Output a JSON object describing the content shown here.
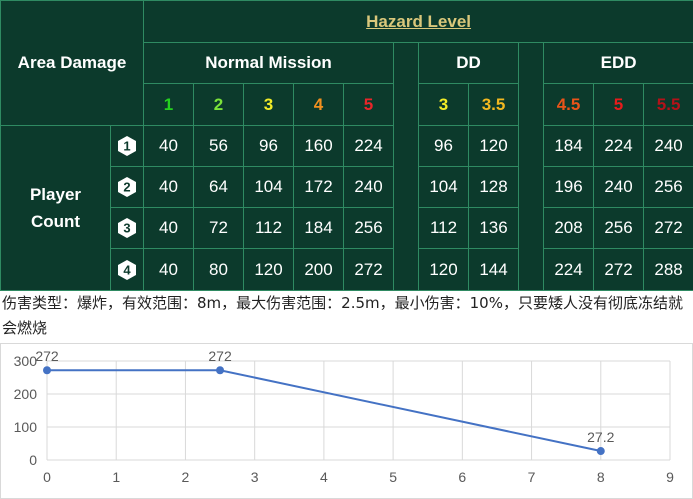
{
  "table": {
    "hazard_title": "Hazard Level",
    "corner_label": "Area Damage",
    "groups": {
      "normal": "Normal Mission",
      "dd": "DD",
      "edd": "EDD"
    },
    "levels": [
      {
        "label": "1",
        "color": "#25d11f"
      },
      {
        "label": "2",
        "color": "#7be33a"
      },
      {
        "label": "3",
        "color": "#f2ec27"
      },
      {
        "label": "4",
        "color": "#f2901f"
      },
      {
        "label": "5",
        "color": "#e8262a"
      },
      {
        "label": "3",
        "color": "#f2ec27"
      },
      {
        "label": "3.5",
        "color": "#f2b820"
      },
      {
        "label": "4.5",
        "color": "#ea5419"
      },
      {
        "label": "5",
        "color": "#e61c1c"
      },
      {
        "label": "5.5",
        "color": "#b31219"
      }
    ],
    "player_count_label_1": "Player",
    "player_count_label_2": "Count",
    "rows": [
      {
        "players": "1",
        "normal": [
          "40",
          "56",
          "96",
          "160",
          "224"
        ],
        "dd": [
          "96",
          "120"
        ],
        "edd": [
          "184",
          "224",
          "240"
        ]
      },
      {
        "players": "2",
        "normal": [
          "40",
          "64",
          "104",
          "172",
          "240"
        ],
        "dd": [
          "104",
          "128"
        ],
        "edd": [
          "196",
          "240",
          "256"
        ]
      },
      {
        "players": "3",
        "normal": [
          "40",
          "72",
          "112",
          "184",
          "256"
        ],
        "dd": [
          "112",
          "136"
        ],
        "edd": [
          "208",
          "256",
          "272"
        ]
      },
      {
        "players": "4",
        "normal": [
          "40",
          "80",
          "120",
          "200",
          "272"
        ],
        "dd": [
          "120",
          "144"
        ],
        "edd": [
          "224",
          "272",
          "288"
        ]
      }
    ]
  },
  "caption": "伤害类型：爆炸，有效范围：8m，最大伤害范围：2.5m，最小伤害：10%，只要矮人没有彻底冻结就会燃烧",
  "chart_data": {
    "type": "line",
    "x": [
      0,
      2.5,
      8
    ],
    "y": [
      272,
      272,
      27.2
    ],
    "data_labels": [
      "272",
      "272",
      "27.2"
    ],
    "xlim": [
      0,
      9
    ],
    "ylim": [
      0,
      300
    ],
    "x_ticks": [
      "0",
      "1",
      "2",
      "3",
      "4",
      "5",
      "6",
      "7",
      "8",
      "9"
    ],
    "y_ticks": [
      "0",
      "100",
      "200",
      "300"
    ],
    "grid": true,
    "line_color": "#4472c4",
    "title": "",
    "xlabel": "",
    "ylabel": ""
  }
}
